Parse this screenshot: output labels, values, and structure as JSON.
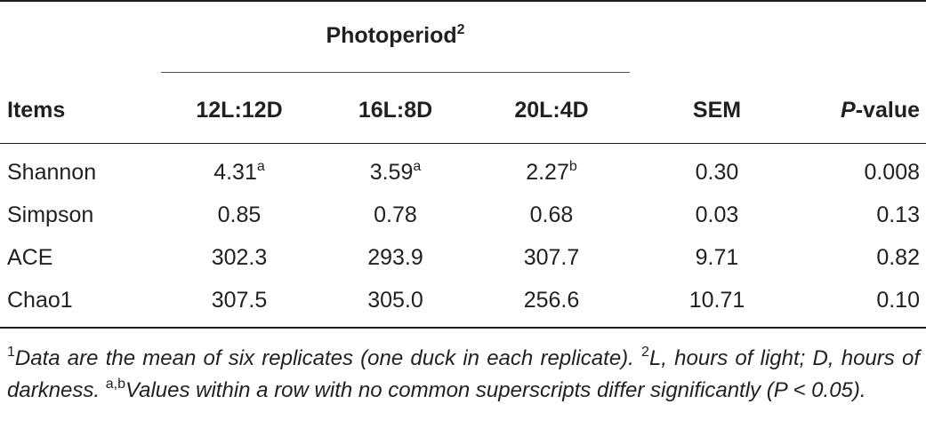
{
  "table": {
    "group_header": {
      "label": "Photoperiod",
      "sup": "2"
    },
    "columns": [
      {
        "label": "Items"
      },
      {
        "label": "12L:12D"
      },
      {
        "label": "16L:8D"
      },
      {
        "label": "20L:4D"
      },
      {
        "label": "SEM"
      },
      {
        "label_italic": "P",
        "label_rest": "-value"
      }
    ],
    "rows": [
      {
        "item": "Shannon",
        "v1": "4.31",
        "s1": "a",
        "v2": "3.59",
        "s2": "a",
        "v3": "2.27",
        "s3": "b",
        "sem": "0.30",
        "p": "0.008"
      },
      {
        "item": "Simpson",
        "v1": "0.85",
        "s1": "",
        "v2": "0.78",
        "s2": "",
        "v3": "0.68",
        "s3": "",
        "sem": "0.03",
        "p": "0.13"
      },
      {
        "item": "ACE",
        "v1": "302.3",
        "s1": "",
        "v2": "293.9",
        "s2": "",
        "v3": "307.7",
        "s3": "",
        "sem": "9.71",
        "p": "0.82"
      },
      {
        "item": "Chao1",
        "v1": "307.5",
        "s1": "",
        "v2": "305.0",
        "s2": "",
        "v3": "256.6",
        "s3": "",
        "sem": "10.71",
        "p": "0.10"
      }
    ]
  },
  "footnotes": {
    "n1_mark": "1",
    "n1_text": "Data are the mean of six replicates (one duck in each replicate).",
    "n2_mark": "2",
    "n2_text": "L, hours of light; D, hours of darkness.",
    "n3_mark": "a,b",
    "n3_text": "Values within a row with no common superscripts differ significantly (P < 0.05)."
  }
}
